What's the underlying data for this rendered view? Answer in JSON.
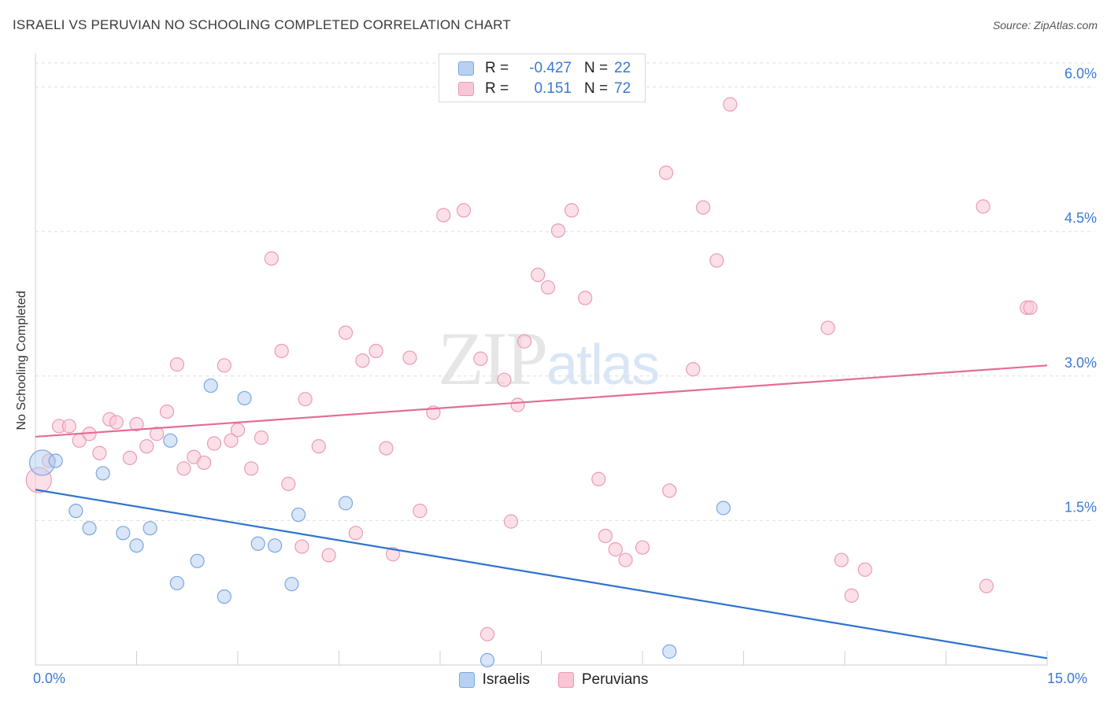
{
  "title": "ISRAELI VS PERUVIAN NO SCHOOLING COMPLETED CORRELATION CHART",
  "source": "Source: ZipAtlas.com",
  "watermark": {
    "zip": "ZIP",
    "atlas": "atlas"
  },
  "legend": {
    "rows": [
      {
        "r_label": "R =",
        "r_value": "-0.427",
        "n_label": "N =",
        "n_value": "22"
      },
      {
        "r_label": "R =",
        "r_value": "0.151",
        "n_label": "N =",
        "n_value": "72"
      }
    ]
  },
  "bottom_legend": [
    "Israelis",
    "Peruvians"
  ],
  "chart_data": {
    "type": "scatter",
    "ylabel": "No Schooling Completed",
    "xlim": [
      0,
      15
    ],
    "ylim": [
      0,
      6.25
    ],
    "x_tick_labels": [
      "0.0%",
      "15.0%"
    ],
    "y_ticks": [
      1.5,
      3.0,
      4.5,
      6.0
    ],
    "y_tick_labels": [
      "1.5%",
      "3.0%",
      "4.5%",
      "6.0%"
    ],
    "grid": true,
    "colors": {
      "israelis_fill": "#b8d1f2",
      "israelis_stroke": "#7aa6e0",
      "israelis_line": "#2c73d2",
      "peruvians_fill": "#f9c6d6",
      "peruvians_stroke": "#eb9ab5",
      "peruvians_line": "#e46c97"
    },
    "series": [
      {
        "name": "Israelis",
        "trend": {
          "x": [
            0,
            15
          ],
          "y": [
            1.82,
            0.07
          ]
        },
        "points": [
          {
            "x": 0.1,
            "y": 2.1,
            "big": true
          },
          {
            "x": 0.3,
            "y": 2.12
          },
          {
            "x": 0.6,
            "y": 1.6
          },
          {
            "x": 0.8,
            "y": 1.42
          },
          {
            "x": 1.0,
            "y": 1.99
          },
          {
            "x": 1.3,
            "y": 1.37
          },
          {
            "x": 1.5,
            "y": 1.24
          },
          {
            "x": 1.7,
            "y": 1.42
          },
          {
            "x": 2.0,
            "y": 2.33
          },
          {
            "x": 2.1,
            "y": 0.85
          },
          {
            "x": 2.4,
            "y": 1.08
          },
          {
            "x": 2.6,
            "y": 2.9
          },
          {
            "x": 2.8,
            "y": 0.71
          },
          {
            "x": 3.1,
            "y": 2.77
          },
          {
            "x": 3.3,
            "y": 1.26
          },
          {
            "x": 3.55,
            "y": 1.24
          },
          {
            "x": 3.8,
            "y": 0.84
          },
          {
            "x": 3.9,
            "y": 1.56
          },
          {
            "x": 4.6,
            "y": 1.68
          },
          {
            "x": 6.7,
            "y": 0.05
          },
          {
            "x": 9.4,
            "y": 0.14
          },
          {
            "x": 10.2,
            "y": 1.63
          }
        ]
      },
      {
        "name": "Peruvians",
        "trend": {
          "x": [
            0,
            15
          ],
          "y": [
            2.37,
            3.11
          ]
        },
        "points": [
          {
            "x": 0.05,
            "y": 1.92,
            "big": true
          },
          {
            "x": 0.2,
            "y": 2.12
          },
          {
            "x": 0.35,
            "y": 2.48
          },
          {
            "x": 0.5,
            "y": 2.48
          },
          {
            "x": 0.65,
            "y": 2.33
          },
          {
            "x": 0.8,
            "y": 2.4
          },
          {
            "x": 0.95,
            "y": 2.2
          },
          {
            "x": 1.1,
            "y": 2.55
          },
          {
            "x": 1.2,
            "y": 2.52
          },
          {
            "x": 1.4,
            "y": 2.15
          },
          {
            "x": 1.5,
            "y": 2.5
          },
          {
            "x": 1.65,
            "y": 2.27
          },
          {
            "x": 1.8,
            "y": 2.4
          },
          {
            "x": 1.95,
            "y": 2.63
          },
          {
            "x": 2.1,
            "y": 3.12
          },
          {
            "x": 2.2,
            "y": 2.04
          },
          {
            "x": 2.35,
            "y": 2.16
          },
          {
            "x": 2.5,
            "y": 2.1
          },
          {
            "x": 2.65,
            "y": 2.3
          },
          {
            "x": 2.8,
            "y": 3.11
          },
          {
            "x": 2.9,
            "y": 2.33
          },
          {
            "x": 3.0,
            "y": 2.44
          },
          {
            "x": 3.2,
            "y": 2.04
          },
          {
            "x": 3.35,
            "y": 2.36
          },
          {
            "x": 3.5,
            "y": 4.22
          },
          {
            "x": 3.65,
            "y": 3.26
          },
          {
            "x": 3.75,
            "y": 1.88
          },
          {
            "x": 3.95,
            "y": 1.23
          },
          {
            "x": 4.0,
            "y": 2.76
          },
          {
            "x": 4.2,
            "y": 2.27
          },
          {
            "x": 4.35,
            "y": 1.14
          },
          {
            "x": 4.6,
            "y": 3.45
          },
          {
            "x": 4.75,
            "y": 1.37
          },
          {
            "x": 4.85,
            "y": 3.16
          },
          {
            "x": 5.05,
            "y": 3.26
          },
          {
            "x": 5.2,
            "y": 2.25
          },
          {
            "x": 5.3,
            "y": 1.15
          },
          {
            "x": 5.55,
            "y": 3.19
          },
          {
            "x": 5.7,
            "y": 1.6
          },
          {
            "x": 5.9,
            "y": 2.62
          },
          {
            "x": 6.05,
            "y": 4.67
          },
          {
            "x": 6.35,
            "y": 4.72
          },
          {
            "x": 6.6,
            "y": 3.18
          },
          {
            "x": 6.7,
            "y": 0.32
          },
          {
            "x": 6.95,
            "y": 2.96
          },
          {
            "x": 7.05,
            "y": 1.49
          },
          {
            "x": 7.15,
            "y": 2.7
          },
          {
            "x": 7.25,
            "y": 3.36
          },
          {
            "x": 7.45,
            "y": 4.05
          },
          {
            "x": 7.6,
            "y": 3.92
          },
          {
            "x": 7.75,
            "y": 4.51
          },
          {
            "x": 7.95,
            "y": 4.72
          },
          {
            "x": 8.15,
            "y": 3.81
          },
          {
            "x": 8.35,
            "y": 1.93
          },
          {
            "x": 8.45,
            "y": 1.34
          },
          {
            "x": 8.6,
            "y": 1.2
          },
          {
            "x": 8.75,
            "y": 1.09
          },
          {
            "x": 9.0,
            "y": 1.22
          },
          {
            "x": 9.35,
            "y": 5.11
          },
          {
            "x": 9.4,
            "y": 1.81
          },
          {
            "x": 9.75,
            "y": 3.07
          },
          {
            "x": 9.9,
            "y": 4.75
          },
          {
            "x": 10.1,
            "y": 4.2
          },
          {
            "x": 10.3,
            "y": 5.82
          },
          {
            "x": 11.75,
            "y": 3.5
          },
          {
            "x": 11.95,
            "y": 1.09
          },
          {
            "x": 12.1,
            "y": 0.72
          },
          {
            "x": 12.3,
            "y": 0.99
          },
          {
            "x": 14.05,
            "y": 4.76
          },
          {
            "x": 14.1,
            "y": 0.82
          },
          {
            "x": 14.7,
            "y": 3.71
          },
          {
            "x": 14.75,
            "y": 3.71
          }
        ]
      }
    ]
  }
}
